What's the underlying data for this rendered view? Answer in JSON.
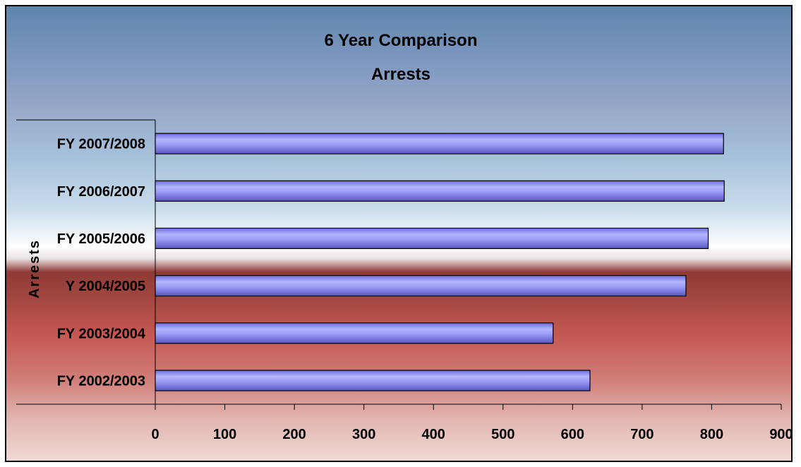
{
  "chart_data": {
    "type": "bar",
    "orientation": "horizontal",
    "title": "6 Year Comparison",
    "subtitle": "Arrests",
    "ylabel": "Arrests",
    "xlabel": "",
    "categories": [
      "FY 2002/2003",
      "FY 2003/2004",
      "Y 2004/2005",
      "FY 2005/2006",
      "FY 2006/2007",
      "FY 2007/2008"
    ],
    "values": [
      625,
      572,
      763,
      795,
      818,
      817
    ],
    "xlim": [
      0,
      900
    ],
    "x_ticks": [
      0,
      100,
      200,
      300,
      400,
      500,
      600,
      700,
      800,
      900
    ],
    "grid": false,
    "bar_color": "#9999ff"
  }
}
